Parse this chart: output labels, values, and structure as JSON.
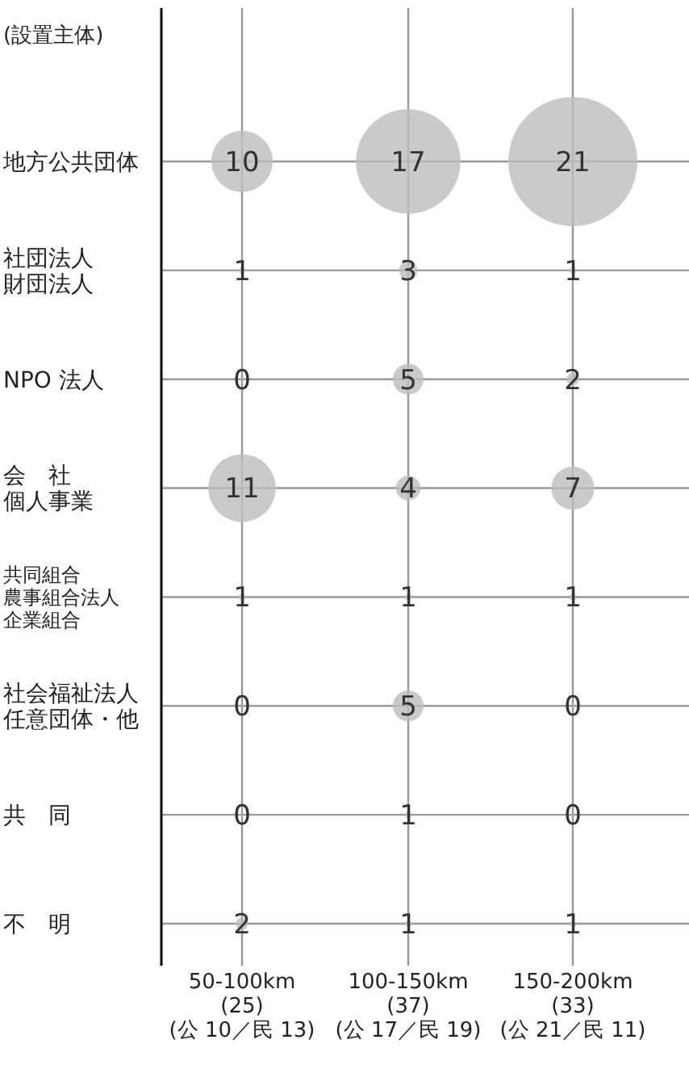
{
  "chart_data": {
    "type": "heatmap",
    "annotations": [
      "(設置主体)"
    ],
    "categories": [
      "50-100km\n(25)\n(公 10／民 13)",
      "100-150km\n(37)\n(公 17／民 19)",
      "150-200km\n(33)\n(公 21／民 11)"
    ],
    "y_categories": [
      "地方公共団体",
      "社団法人財団法人",
      "NPO 法人",
      "会　社個人事業",
      "共同組合農事組合法人企業組合",
      "社会福祉法人任意団体・他",
      "共　同",
      "不　明"
    ],
    "cells": [
      [
        10,
        17,
        21
      ],
      [
        1,
        3,
        1
      ],
      [
        0,
        5,
        2
      ],
      [
        11,
        4,
        7
      ],
      [
        1,
        1,
        1
      ],
      [
        0,
        5,
        0
      ],
      [
        0,
        1,
        0
      ],
      [
        2,
        1,
        1
      ]
    ],
    "color": "#bdbdbd",
    "data_labels": true,
    "grid": true
  }
}
